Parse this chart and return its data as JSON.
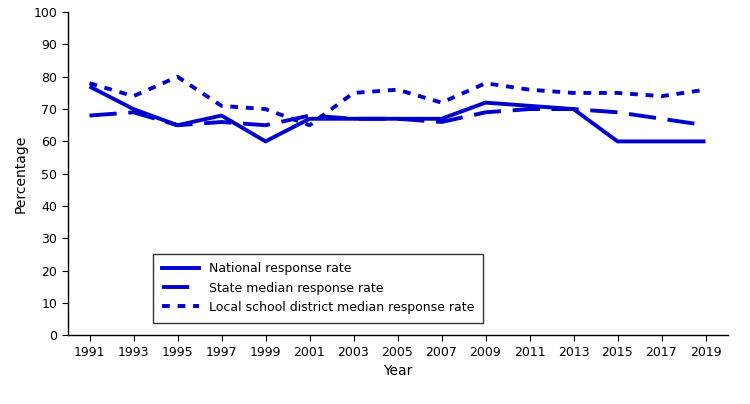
{
  "years": [
    1991,
    1993,
    1995,
    1997,
    1999,
    2001,
    2003,
    2005,
    2007,
    2009,
    2011,
    2013,
    2015,
    2017,
    2019
  ],
  "national": [
    77,
    70,
    65,
    68,
    60,
    67,
    67,
    67,
    67,
    72,
    71,
    70,
    60,
    60,
    60
  ],
  "state_median": [
    68,
    69,
    65,
    66,
    65,
    68,
    67,
    67,
    66,
    69,
    70,
    70,
    69,
    67,
    65
  ],
  "local_median": [
    78,
    74,
    80,
    71,
    70,
    65,
    75,
    76,
    72,
    78,
    76,
    75,
    75,
    74,
    76
  ],
  "line_color": "#0000CD",
  "ylabel": "Percentage",
  "xlabel": "Year",
  "ylim": [
    0,
    100
  ],
  "yticks": [
    0,
    10,
    20,
    30,
    40,
    50,
    60,
    70,
    80,
    90,
    100
  ],
  "legend_labels": [
    "National response rate",
    "State median response rate",
    "Local school district median response rate"
  ],
  "background_color": "#ffffff"
}
